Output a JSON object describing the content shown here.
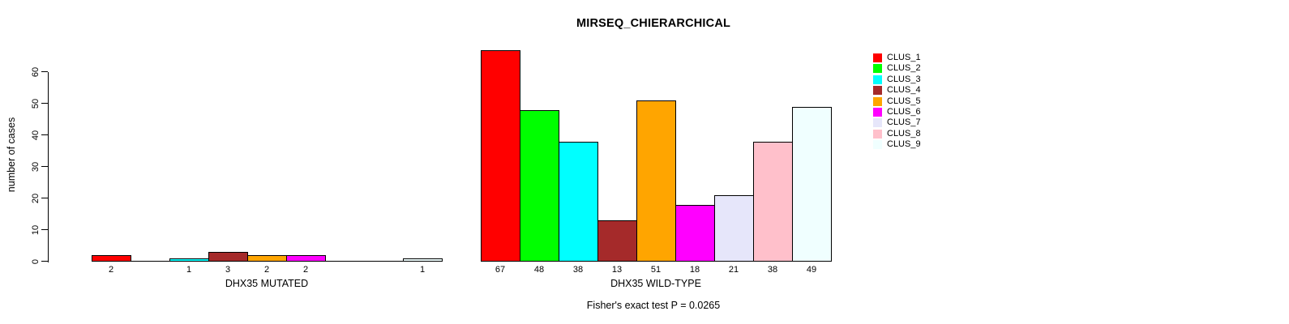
{
  "chart_data": {
    "type": "bar",
    "title": "MIRSEQ_CHIERARCHICAL",
    "ylabel": "number of cases",
    "xlabel": "",
    "ylim": [
      0,
      67
    ],
    "y_ticks": [
      0,
      10,
      20,
      30,
      40,
      50,
      60
    ],
    "grid": false,
    "legend_position": "right",
    "footnote": "Fisher's exact test P = 0.0265",
    "clusters": [
      {
        "name": "CLUS_1",
        "color": "#FF0000"
      },
      {
        "name": "CLUS_2",
        "color": "#00FF00"
      },
      {
        "name": "CLUS_3",
        "color": "#00FFFF"
      },
      {
        "name": "CLUS_4",
        "color": "#A52A2A"
      },
      {
        "name": "CLUS_5",
        "color": "#FFA500"
      },
      {
        "name": "CLUS_6",
        "color": "#FF00FF"
      },
      {
        "name": "CLUS_7",
        "color": "#E6E6FA"
      },
      {
        "name": "CLUS_8",
        "color": "#FFC0CB"
      },
      {
        "name": "CLUS_9",
        "color": "#F0FFFF"
      }
    ],
    "groups": [
      {
        "label": "DHX35 MUTATED",
        "values": [
          2,
          0,
          1,
          3,
          2,
          2,
          0,
          0,
          1
        ]
      },
      {
        "label": "DHX35 WILD-TYPE",
        "values": [
          67,
          48,
          38,
          13,
          51,
          18,
          21,
          38,
          49
        ]
      }
    ],
    "zero_bars_unlabeled": true
  }
}
